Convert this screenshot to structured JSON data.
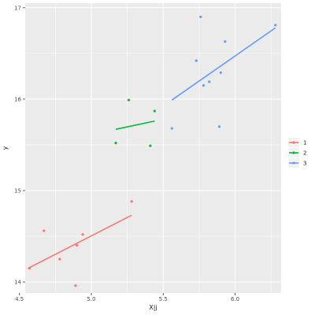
{
  "chart_data": {
    "type": "scatter",
    "title": "",
    "xlabel": "X|j",
    "ylabel": "y",
    "xlim": [
      4.54,
      6.32
    ],
    "ylim": [
      13.88,
      17.05
    ],
    "xticks": [
      "4.5",
      "5.0",
      "5.5",
      "6.0"
    ],
    "xtick_values": [
      4.5,
      5.0,
      5.5,
      6.0
    ],
    "yticks": [
      "14",
      "15",
      "16",
      "17"
    ],
    "ytick_values": [
      14,
      15,
      16,
      17
    ],
    "grid": true,
    "legend": {
      "position": "right",
      "entries": [
        "1",
        "2",
        "3"
      ]
    },
    "colors": {
      "1": "#F8766D",
      "2": "#00BA38",
      "3": "#619CFF",
      "panel": "#EBEBEB",
      "grid": "#FFFFFF"
    },
    "series": [
      {
        "name": "1",
        "points": [
          [
            4.57,
            14.15
          ],
          [
            4.67,
            14.56
          ],
          [
            4.78,
            14.25
          ],
          [
            4.89,
            13.96
          ],
          [
            4.9,
            14.4
          ],
          [
            4.94,
            14.52
          ],
          [
            5.28,
            14.88
          ]
        ],
        "fit": [
          [
            4.56,
            14.15
          ],
          [
            5.28,
            14.73
          ]
        ]
      },
      {
        "name": "2",
        "points": [
          [
            5.17,
            15.52
          ],
          [
            5.26,
            15.99
          ],
          [
            5.41,
            15.49
          ],
          [
            5.44,
            15.87
          ]
        ],
        "fit": [
          [
            5.17,
            15.67
          ],
          [
            5.44,
            15.76
          ]
        ]
      },
      {
        "name": "3",
        "points": [
          [
            5.56,
            15.68
          ],
          [
            5.73,
            16.42
          ],
          [
            5.76,
            16.9
          ],
          [
            5.78,
            16.15
          ],
          [
            5.82,
            16.19
          ],
          [
            5.89,
            15.7
          ],
          [
            5.9,
            16.29
          ],
          [
            5.93,
            16.63
          ],
          [
            6.28,
            16.81
          ]
        ],
        "fit": [
          [
            5.56,
            15.99
          ],
          [
            6.28,
            16.78
          ]
        ]
      }
    ]
  }
}
